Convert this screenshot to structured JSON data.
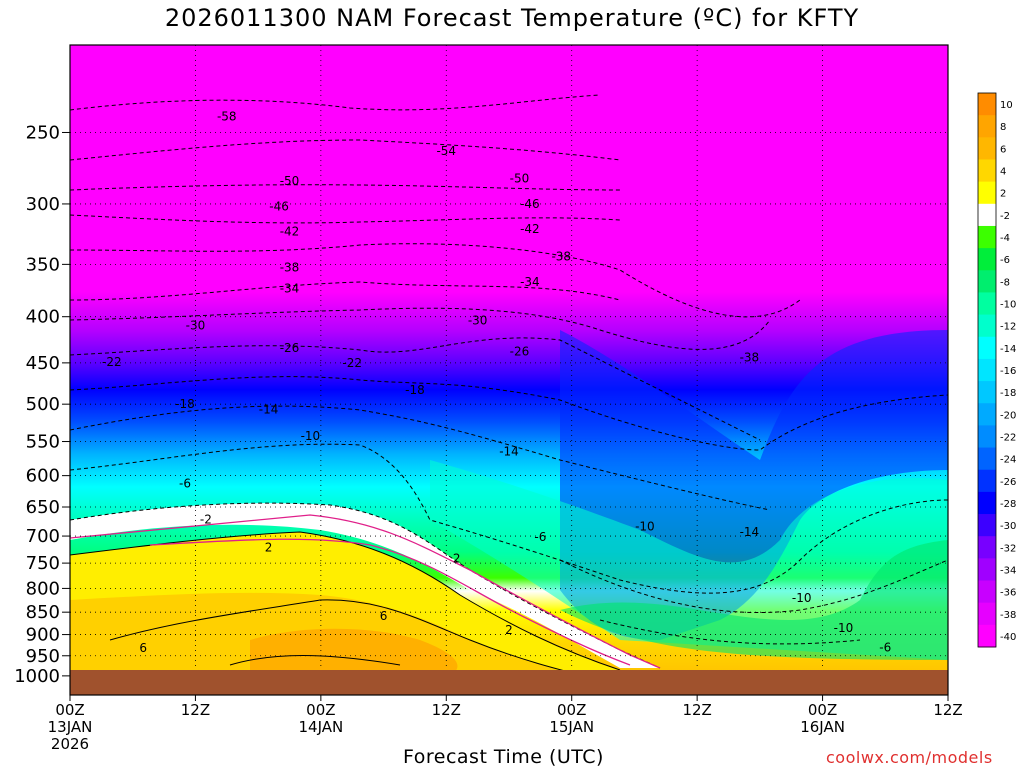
{
  "title": "2026011300 NAM Forecast Temperature (ºC) for KFTY",
  "xaxis_title": "Forecast Time (UTC)",
  "credit": "coolwx.com/models",
  "chart_data": {
    "type": "heatmap",
    "x_ticks": [
      {
        "hour": 0,
        "lines": [
          "00Z",
          "13JAN",
          "2026"
        ]
      },
      {
        "hour": 12,
        "lines": [
          "12Z"
        ]
      },
      {
        "hour": 24,
        "lines": [
          "00Z",
          "14JAN"
        ]
      },
      {
        "hour": 36,
        "lines": [
          "12Z"
        ]
      },
      {
        "hour": 48,
        "lines": [
          "00Z",
          "15JAN"
        ]
      },
      {
        "hour": 60,
        "lines": [
          "12Z"
        ]
      },
      {
        "hour": 72,
        "lines": [
          "00Z",
          "16JAN"
        ]
      },
      {
        "hour": 84,
        "lines": [
          "12Z"
        ]
      }
    ],
    "x_range_hours": [
      0,
      84
    ],
    "y_ticks": [
      250,
      300,
      350,
      400,
      450,
      500,
      550,
      600,
      650,
      700,
      750,
      800,
      850,
      900,
      950,
      1000
    ],
    "y_range_hpa": [
      200,
      1050
    ],
    "y_scale": "log (pressure, inverted)",
    "surface_pressure_hpa": 980,
    "colorbar": {
      "labels": [
        "10",
        "8",
        "6",
        "4",
        "2",
        "-2",
        "-4",
        "-6",
        "-8",
        "-10",
        "-12",
        "-14",
        "-16",
        "-18",
        "-20",
        "-22",
        "-24",
        "-26",
        "-28",
        "-30",
        "-32",
        "-34",
        "-36",
        "-38",
        "-40"
      ],
      "colors": [
        "#ff8c00",
        "#ffa500",
        "#ffb700",
        "#ffd700",
        "#ffff00",
        "#ffffff",
        "#3cff00",
        "#00ee3a",
        "#00ee6e",
        "#00ffa0",
        "#00ffcc",
        "#00ffff",
        "#00e5ff",
        "#00c8ff",
        "#00aaff",
        "#008cff",
        "#0064ff",
        "#0032ff",
        "#0000ff",
        "#3c00ff",
        "#7800ff",
        "#a000ff",
        "#c800ff",
        "#e600ff",
        "#ff00ff"
      ]
    },
    "contour_labels": [
      {
        "text": "-58",
        "hour": 15,
        "hpa": 240
      },
      {
        "text": "-54",
        "hour": 36,
        "hpa": 262
      },
      {
        "text": "-50",
        "hour": 21,
        "hpa": 283
      },
      {
        "text": "-50",
        "hour": 43,
        "hpa": 281
      },
      {
        "text": "-46",
        "hour": 20,
        "hpa": 302
      },
      {
        "text": "-46",
        "hour": 44,
        "hpa": 300
      },
      {
        "text": "-42",
        "hour": 21,
        "hpa": 322
      },
      {
        "text": "-42",
        "hour": 44,
        "hpa": 320
      },
      {
        "text": "-38",
        "hour": 21,
        "hpa": 353
      },
      {
        "text": "-38",
        "hour": 47,
        "hpa": 343
      },
      {
        "text": "-34",
        "hour": 21,
        "hpa": 372
      },
      {
        "text": "-34",
        "hour": 44,
        "hpa": 366
      },
      {
        "text": "-30",
        "hour": 12,
        "hpa": 409
      },
      {
        "text": "-30",
        "hour": 39,
        "hpa": 404
      },
      {
        "text": "-26",
        "hour": 21,
        "hpa": 433
      },
      {
        "text": "-26",
        "hour": 43,
        "hpa": 437
      },
      {
        "text": "-38",
        "hour": 65,
        "hpa": 444
      },
      {
        "text": "-22",
        "hour": 4,
        "hpa": 449
      },
      {
        "text": "-22",
        "hour": 27,
        "hpa": 450
      },
      {
        "text": "-18",
        "hour": 33,
        "hpa": 482
      },
      {
        "text": "-18",
        "hour": 11,
        "hpa": 500
      },
      {
        "text": "-14",
        "hour": 19,
        "hpa": 507
      },
      {
        "text": "-10",
        "hour": 23,
        "hpa": 542
      },
      {
        "text": "-14",
        "hour": 42,
        "hpa": 564
      },
      {
        "text": "-6",
        "hour": 11,
        "hpa": 612
      },
      {
        "text": "-2",
        "hour": 13,
        "hpa": 671
      },
      {
        "text": "-10",
        "hour": 55,
        "hpa": 683
      },
      {
        "text": "-14",
        "hour": 65,
        "hpa": 693
      },
      {
        "text": "-6",
        "hour": 45,
        "hpa": 702
      },
      {
        "text": "2",
        "hour": 19,
        "hpa": 721
      },
      {
        "text": "2",
        "hour": 37,
        "hpa": 741
      },
      {
        "text": "-10",
        "hour": 70,
        "hpa": 820
      },
      {
        "text": "6",
        "hour": 30,
        "hpa": 858
      },
      {
        "text": "-10",
        "hour": 74,
        "hpa": 885
      },
      {
        "text": "2",
        "hour": 42,
        "hpa": 889
      },
      {
        "text": "6",
        "hour": 7,
        "hpa": 931
      },
      {
        "text": "-6",
        "hour": 78,
        "hpa": 930
      }
    ]
  }
}
